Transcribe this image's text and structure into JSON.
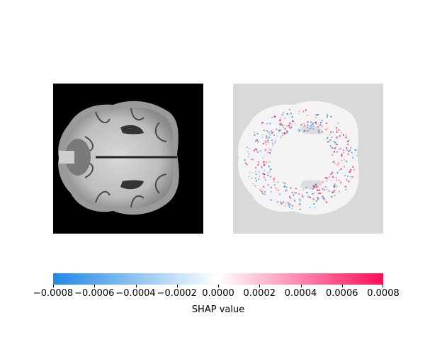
{
  "colorbar": {
    "label": "SHAP value",
    "min": -0.0008,
    "max": 0.0008,
    "ticks": [
      "−0.0008",
      "−0.0006",
      "−0.0004",
      "−0.0002",
      "0.0000",
      "0.0002",
      "0.0004",
      "0.0006",
      "0.0008"
    ],
    "tick_values": [
      -0.0008,
      -0.0006,
      -0.0004,
      -0.0002,
      0.0,
      0.0002,
      0.0004,
      0.0006,
      0.0008
    ],
    "neg_color": "#1e88e5",
    "pos_color": "#ff0d57",
    "mid_color": "#ffffff"
  },
  "colors": {
    "mri_background": "#000000",
    "shap_background": "#d9d9d9"
  }
}
